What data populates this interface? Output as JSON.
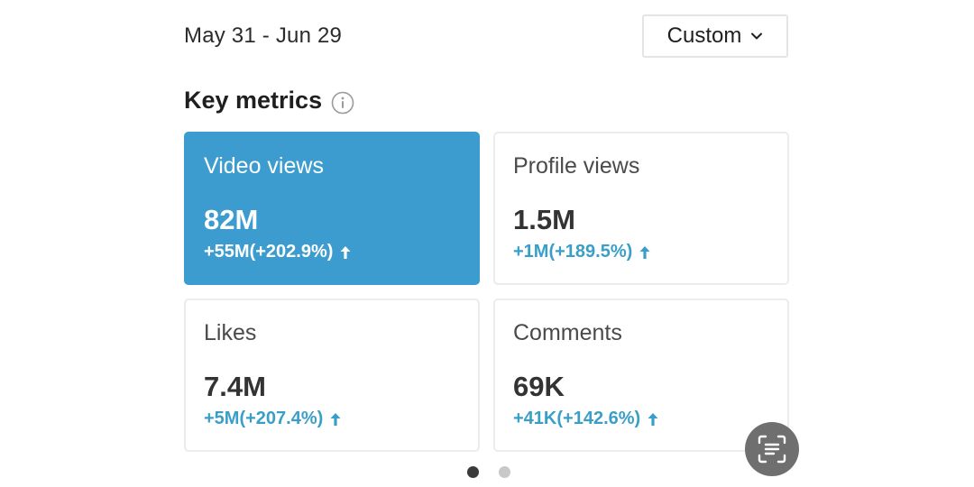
{
  "header": {
    "date_range": "May 31 - Jun 29",
    "range_selector": {
      "label": "Custom",
      "icon": "chevron-down-icon"
    }
  },
  "key_metrics": {
    "title": "Key metrics",
    "info_icon": "info-icon",
    "cards": [
      {
        "title": "Video views",
        "value": "82M",
        "delta": "+55M(+202.9%)",
        "trend": "up",
        "selected": true
      },
      {
        "title": "Profile views",
        "value": "1.5M",
        "delta": "+1M(+189.5%)",
        "trend": "up",
        "selected": false
      },
      {
        "title": "Likes",
        "value": "7.4M",
        "delta": "+5M(+207.4%)",
        "trend": "up",
        "selected": false
      },
      {
        "title": "Comments",
        "value": "69K",
        "delta": "+41K(+142.6%)",
        "trend": "up",
        "selected": false
      }
    ]
  },
  "pagination": {
    "pages": 2,
    "current": 1
  },
  "overlay": {
    "icon": "text-scan-icon"
  },
  "colors": {
    "accent": "#3d9ccf",
    "positive": "#3a9fc8",
    "text_primary": "#1f1f1f",
    "card_border": "#ececec"
  }
}
